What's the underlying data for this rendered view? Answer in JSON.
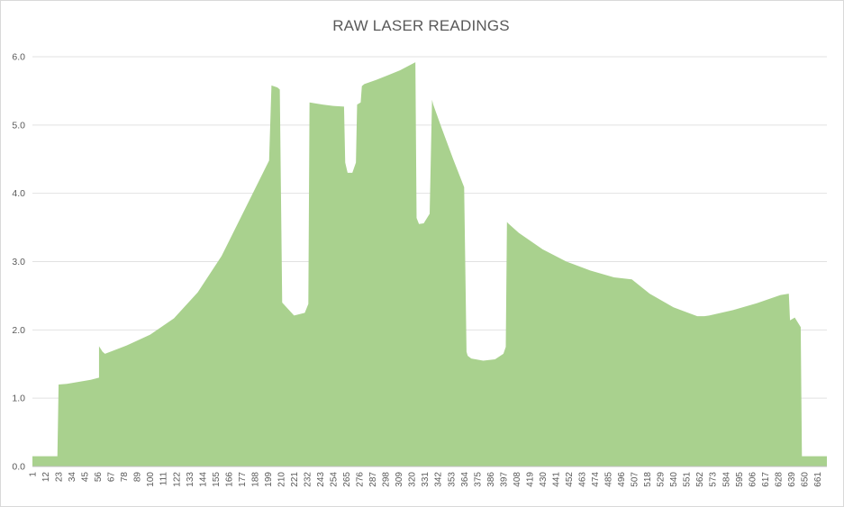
{
  "chart_data": {
    "type": "area",
    "title": "RAW LASER READINGS",
    "xlabel": "",
    "ylabel": "",
    "ylim": [
      0,
      6
    ],
    "yticks": [
      "0.0",
      "1.0",
      "2.0",
      "3.0",
      "4.0",
      "5.0",
      "6.0"
    ],
    "xlim": [
      1,
      669
    ],
    "xticks": [
      1,
      12,
      23,
      34,
      45,
      56,
      67,
      78,
      89,
      100,
      111,
      122,
      133,
      144,
      155,
      166,
      177,
      188,
      199,
      210,
      221,
      232,
      243,
      254,
      265,
      276,
      287,
      298,
      309,
      320,
      331,
      342,
      353,
      364,
      375,
      386,
      397,
      408,
      419,
      430,
      441,
      452,
      463,
      474,
      485,
      496,
      507,
      518,
      529,
      540,
      551,
      562,
      573,
      584,
      595,
      606,
      617,
      628,
      639,
      650,
      661
    ],
    "grid": true,
    "legend": "none",
    "color": "#a9d18e",
    "series": [
      {
        "x": [
          1,
          22,
          23,
          30,
          40,
          50,
          57,
          57,
          60,
          62,
          80,
          100,
          120,
          140,
          160,
          180,
          200,
          202,
          207,
          209,
          211,
          221,
          230,
          233,
          234,
          245,
          254,
          263,
          264,
          266,
          270,
          273,
          274,
          277,
          278,
          280,
          290,
          300,
          310,
          323,
          324,
          326,
          330,
          335,
          337,
          338,
          345,
          355,
          364,
          366,
          367,
          370,
          380,
          390,
          397,
          399,
          400,
          401,
          410,
          430,
          450,
          470,
          490,
          505,
          520,
          540,
          560,
          566,
          570,
          590,
          610,
          630,
          637,
          638,
          642,
          647,
          648,
          669
        ],
        "y": [
          0.15,
          0.15,
          1.2,
          1.21,
          1.24,
          1.27,
          1.3,
          1.76,
          1.68,
          1.65,
          1.77,
          1.93,
          2.17,
          2.55,
          3.08,
          3.78,
          4.48,
          5.58,
          5.55,
          5.52,
          2.4,
          2.21,
          2.25,
          2.38,
          5.33,
          5.3,
          5.28,
          5.27,
          4.45,
          4.3,
          4.3,
          4.45,
          5.3,
          5.33,
          5.57,
          5.6,
          5.66,
          5.73,
          5.8,
          5.92,
          3.64,
          3.55,
          3.56,
          3.7,
          5.37,
          5.3,
          4.96,
          4.49,
          4.09,
          1.68,
          1.62,
          1.58,
          1.55,
          1.57,
          1.65,
          1.75,
          3.58,
          3.56,
          3.42,
          3.18,
          3.0,
          2.87,
          2.77,
          2.74,
          2.53,
          2.33,
          2.2,
          2.2,
          2.21,
          2.29,
          2.39,
          2.51,
          2.53,
          2.14,
          2.18,
          2.04,
          0.15,
          0.15
        ]
      }
    ]
  }
}
